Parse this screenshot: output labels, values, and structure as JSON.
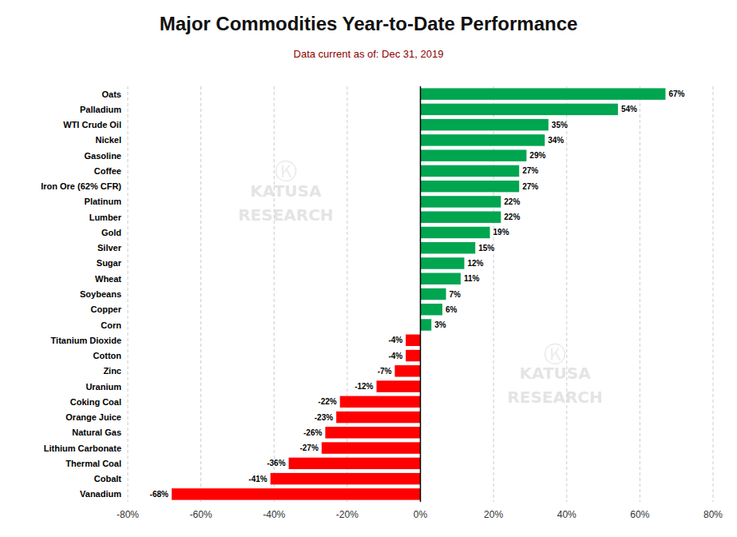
{
  "chart_data": {
    "type": "bar",
    "orientation": "horizontal",
    "title": "Major Commodities Year-to-Date Performance",
    "subtitle": "Data current as of:  Dec 31, 2019",
    "annotations": [
      "Ⓚ",
      "KATUSA\nRESEARCH",
      "Ⓚ",
      "KATUSA\nRESEARCH"
    ],
    "categories": [
      "Oats",
      "Palladium",
      "WTI Crude Oil",
      "Nickel",
      "Gasoline",
      "Coffee",
      "Iron Ore (62% CFR)",
      "Platinum",
      "Lumber",
      "Gold",
      "Silver",
      "Sugar",
      "Wheat",
      "Soybeans",
      "Copper",
      "Corn",
      "Titanium Dioxide",
      "Cotton",
      "Zinc",
      "Uranium",
      "Coking Coal",
      "Orange Juice",
      "Natural Gas",
      "Lithium Carbonate",
      "Thermal Coal",
      "Cobalt",
      "Vanadium"
    ],
    "values": [
      67,
      54,
      35,
      34,
      29,
      27,
      27,
      22,
      22,
      19,
      15,
      12,
      11,
      7,
      6,
      3,
      -4,
      -4,
      -7,
      -12,
      -22,
      -23,
      -26,
      -27,
      -36,
      -41,
      -68
    ],
    "value_labels": [
      "67%",
      "54%",
      "35%",
      "34%",
      "29%",
      "27%",
      "27%",
      "22%",
      "22%",
      "19%",
      "15%",
      "12%",
      "11%",
      "7%",
      "6%",
      "3%",
      "-4%",
      "-4%",
      "-7%",
      "-12%",
      "-22%",
      "-23%",
      "-26%",
      "-27%",
      "-36%",
      "-41%",
      "-68%"
    ],
    "data_labels": true,
    "colors": [
      "#00a550",
      "#00a550",
      "#00a550",
      "#00a550",
      "#00a550",
      "#00a550",
      "#00a550",
      "#00a550",
      "#00a550",
      "#00a550",
      "#00a550",
      "#00a550",
      "#00a550",
      "#00a550",
      "#00a550",
      "#00a550",
      "#ff0000",
      "#ff0000",
      "#ff0000",
      "#ff0000",
      "#ff0000",
      "#ff0000",
      "#ff0000",
      "#ff0000",
      "#ff0000",
      "#ff0000",
      "#ff0000"
    ],
    "xlim": [
      -80,
      80
    ],
    "xticks": [
      {
        "value": -80,
        "label": "-80%"
      },
      {
        "value": -60,
        "label": "-60%"
      },
      {
        "value": -40,
        "label": "-40%"
      },
      {
        "value": -20,
        "label": "-20%"
      },
      {
        "value": 0,
        "label": "0%"
      },
      {
        "value": 20,
        "label": "20%"
      },
      {
        "value": 40,
        "label": "40%"
      },
      {
        "value": 60,
        "label": "60%"
      },
      {
        "value": 80,
        "label": "80%"
      }
    ],
    "grid": true
  }
}
